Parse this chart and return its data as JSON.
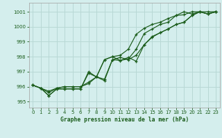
{
  "xlabel": "Graphe pression niveau de la mer (hPa)",
  "xlim": [
    -0.5,
    23.5
  ],
  "ylim": [
    994.6,
    1001.6
  ],
  "yticks": [
    995,
    996,
    997,
    998,
    999,
    1000,
    1001
  ],
  "xticks": [
    0,
    1,
    2,
    3,
    4,
    5,
    6,
    7,
    8,
    9,
    10,
    11,
    12,
    13,
    14,
    15,
    16,
    17,
    18,
    19,
    20,
    21,
    22,
    23
  ],
  "background_color": "#d4eeed",
  "grid_color": "#b8d8d5",
  "line_color": "#1a5c1a",
  "series": [
    [
      996.1,
      995.9,
      995.4,
      995.85,
      995.85,
      995.85,
      995.85,
      996.9,
      996.65,
      996.4,
      997.8,
      997.75,
      997.95,
      997.7,
      998.8,
      999.35,
      999.6,
      999.85,
      1000.15,
      1000.3,
      1000.75,
      1001.0,
      1000.85,
      1001.0
    ],
    [
      996.1,
      995.9,
      995.4,
      995.85,
      995.85,
      995.85,
      995.85,
      997.0,
      996.65,
      997.8,
      998.0,
      997.75,
      997.85,
      998.5,
      999.55,
      999.85,
      1000.15,
      1000.3,
      1000.75,
      1001.0,
      1000.85,
      1001.0,
      1001.0,
      1001.0
    ],
    [
      996.1,
      995.9,
      995.7,
      995.9,
      996.0,
      996.0,
      996.0,
      996.2,
      996.65,
      997.8,
      998.0,
      998.1,
      998.5,
      999.5,
      999.9,
      1000.15,
      1000.3,
      1000.55,
      1000.75,
      1000.8,
      1001.0,
      1001.0,
      1000.85,
      1001.0
    ],
    [
      996.1,
      995.9,
      995.6,
      995.9,
      996.0,
      996.0,
      996.0,
      996.3,
      996.65,
      996.5,
      997.8,
      997.95,
      997.8,
      998.1,
      998.8,
      999.3,
      999.6,
      999.85,
      1000.15,
      1000.3,
      1000.75,
      1001.0,
      1000.85,
      1001.0
    ]
  ]
}
